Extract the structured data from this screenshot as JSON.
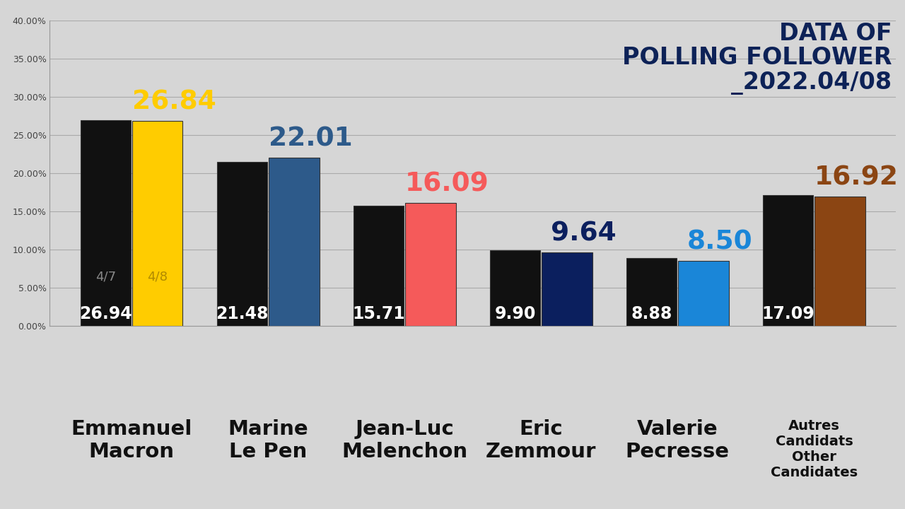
{
  "chart_data": {
    "type": "bar",
    "title": "DATA OF\nPOLLING FOLLOWER\n_2022.04/08",
    "categories": [
      "Emmanuel\nMacron",
      "Marine\nLe Pen",
      "Jean-Luc\nMelenchon",
      "Eric\nZemmour",
      "Valerie\nPecresse",
      "Autres\nCandidats\nOther\nCandidates"
    ],
    "series": [
      {
        "name": "4/7",
        "color": "#111111",
        "values": [
          26.94,
          21.48,
          15.71,
          9.9,
          8.88,
          17.09
        ],
        "value_labels": [
          "26.94",
          "21.48",
          "15.71",
          "9.90",
          "8.88",
          "17.09"
        ]
      },
      {
        "name": "4/8",
        "colors": [
          "#ffcc00",
          "#2d5a8a",
          "#f55a5a",
          "#0b1f5e",
          "#1a86d8",
          "#8b4513"
        ],
        "values": [
          26.84,
          22.01,
          16.09,
          9.64,
          8.5,
          16.92
        ],
        "value_labels": [
          "26.84",
          "22.01",
          "16.09",
          "9.64",
          "8.50",
          "16.92"
        ]
      }
    ],
    "ylim": [
      0,
      40
    ],
    "yticks": [
      {
        "value": 0,
        "label": "0.00%"
      },
      {
        "value": 5,
        "label": "5.00%"
      },
      {
        "value": 10,
        "label": "10.00%"
      },
      {
        "value": 15,
        "label": "15.00%"
      },
      {
        "value": 20,
        "label": "20.00%"
      },
      {
        "value": 25,
        "label": "25.00%"
      },
      {
        "value": 30,
        "label": "30.00%"
      },
      {
        "value": 35,
        "label": "35.00%"
      },
      {
        "value": 40,
        "label": "40.00%"
      }
    ],
    "grid": true,
    "data_labels": true
  }
}
